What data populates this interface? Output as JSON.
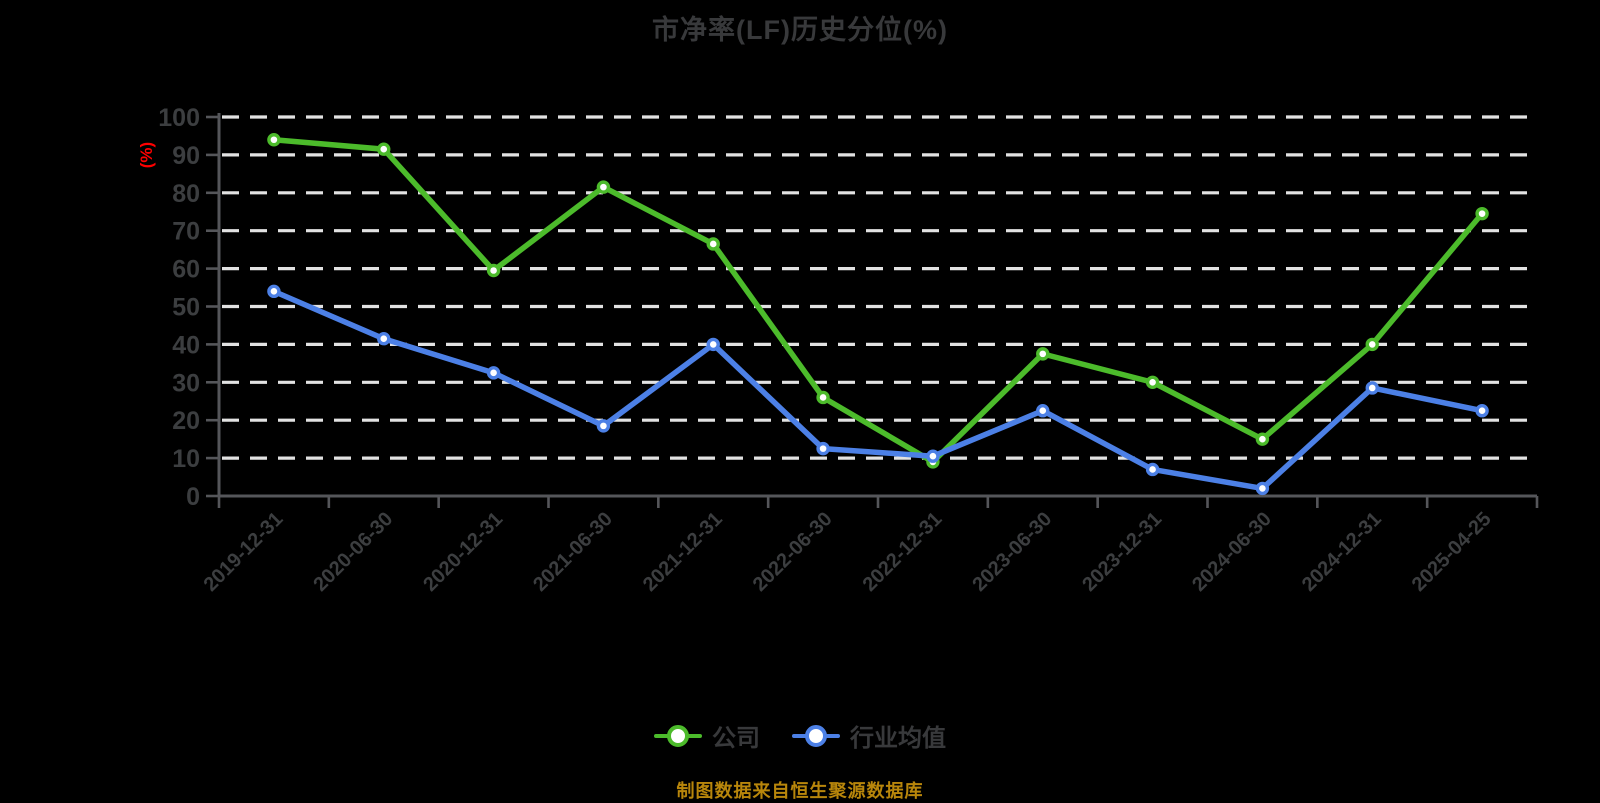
{
  "title": "市净率(LF)历史分位(%)",
  "source_note": "制图数据来自恒生聚源数据库",
  "y_axis": {
    "unit_label": "(%)"
  },
  "colors": {
    "background": "#000000",
    "title_text": "#38393b",
    "axis_text": "#3c3e40",
    "axis_line": "#55565a",
    "gridline": "#e2e2e2",
    "unit_text": "#ff0000",
    "source_text": "#b8860b",
    "marker_fill": "#ffffff",
    "company_series": "#4cbb2b",
    "industry_series": "#4c80e6"
  },
  "chart_data": {
    "type": "line",
    "title": "市净率(LF)历史分位(%)",
    "categories": [
      "2019-12-31",
      "2020-06-30",
      "2020-12-31",
      "2021-06-30",
      "2021-12-31",
      "2022-06-30",
      "2022-12-31",
      "2023-06-30",
      "2023-12-31",
      "2024-06-30",
      "2024-12-31",
      "2025-04-25"
    ],
    "series": [
      {
        "name": "公司",
        "color": "#4cbb2b",
        "values": [
          94,
          91.5,
          59.5,
          81.5,
          66.5,
          26,
          9,
          37.5,
          30,
          15,
          40,
          74.5
        ]
      },
      {
        "name": "行业均值",
        "color": "#4c80e6",
        "values": [
          54,
          41.5,
          32.5,
          18.5,
          40,
          12.5,
          10.5,
          22.5,
          7,
          2,
          28.5,
          22.5
        ]
      }
    ],
    "ylabel": "(%)",
    "ylim": [
      0,
      100
    ],
    "y_tick_step": 10,
    "grid": "horizontal-dashed-white",
    "legend_position": "bottom",
    "marker": "circle-white-fill"
  }
}
